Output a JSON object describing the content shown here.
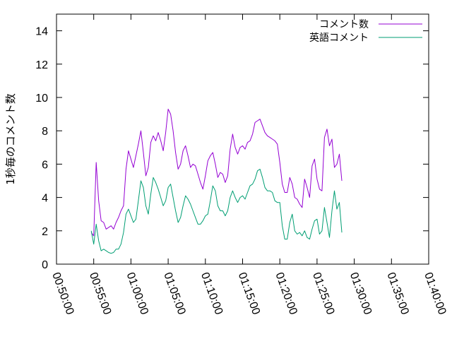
{
  "chart_data": {
    "type": "line",
    "title": "",
    "xlabel": "",
    "ylabel": "1秒毎のコメント数",
    "ylim": [
      0,
      15
    ],
    "yticks": [
      0,
      2,
      4,
      6,
      8,
      10,
      12,
      14
    ],
    "xlim": [
      "00:50:00",
      "01:40:00"
    ],
    "xticks": [
      "00:50:00",
      "00:55:00",
      "01:00:00",
      "01:05:00",
      "01:10:00",
      "01:15:00",
      "01:20:00",
      "01:25:00",
      "01:30:00",
      "01:35:00",
      "01:40:00"
    ],
    "grid": false,
    "legend_position": "top-right",
    "series": [
      {
        "name": "コメント数",
        "color": "#9400d3",
        "points": [
          [
            "00:54:40",
            1.9
          ],
          [
            "00:55:00",
            1.7
          ],
          [
            "00:55:20",
            6.1
          ],
          [
            "00:55:40",
            3.8
          ],
          [
            "00:56:00",
            2.6
          ],
          [
            "00:56:20",
            2.5
          ],
          [
            "00:56:40",
            2.1
          ],
          [
            "00:57:00",
            2.2
          ],
          [
            "00:57:20",
            2.3
          ],
          [
            "00:57:40",
            2.1
          ],
          [
            "00:58:00",
            2.5
          ],
          [
            "00:58:20",
            2.8
          ],
          [
            "00:58:40",
            3.2
          ],
          [
            "00:59:00",
            3.5
          ],
          [
            "00:59:20",
            5.7
          ],
          [
            "00:59:40",
            6.8
          ],
          [
            "01:00:00",
            6.3
          ],
          [
            "01:00:20",
            5.8
          ],
          [
            "01:00:40",
            6.5
          ],
          [
            "01:01:00",
            7.2
          ],
          [
            "01:01:20",
            8.0
          ],
          [
            "01:01:40",
            6.7
          ],
          [
            "01:02:00",
            5.3
          ],
          [
            "01:02:20",
            5.8
          ],
          [
            "01:02:40",
            7.3
          ],
          [
            "01:03:00",
            7.7
          ],
          [
            "01:03:20",
            7.4
          ],
          [
            "01:03:40",
            7.9
          ],
          [
            "01:04:00",
            7.4
          ],
          [
            "01:04:20",
            6.8
          ],
          [
            "01:04:40",
            7.9
          ],
          [
            "01:05:00",
            9.3
          ],
          [
            "01:05:20",
            9.0
          ],
          [
            "01:05:40",
            8.0
          ],
          [
            "01:06:00",
            6.7
          ],
          [
            "01:06:20",
            5.7
          ],
          [
            "01:06:40",
            6.0
          ],
          [
            "01:07:00",
            6.8
          ],
          [
            "01:07:20",
            7.1
          ],
          [
            "01:07:40",
            6.5
          ],
          [
            "01:08:00",
            5.8
          ],
          [
            "01:08:20",
            6.0
          ],
          [
            "01:08:40",
            5.9
          ],
          [
            "01:09:00",
            5.4
          ],
          [
            "01:09:20",
            4.9
          ],
          [
            "01:09:40",
            4.5
          ],
          [
            "01:10:00",
            5.3
          ],
          [
            "01:10:20",
            6.2
          ],
          [
            "01:10:40",
            6.5
          ],
          [
            "01:11:00",
            6.7
          ],
          [
            "01:11:20",
            6.0
          ],
          [
            "01:11:40",
            5.2
          ],
          [
            "01:12:00",
            5.5
          ],
          [
            "01:12:20",
            5.4
          ],
          [
            "01:12:40",
            4.9
          ],
          [
            "01:13:00",
            5.3
          ],
          [
            "01:13:20",
            6.9
          ],
          [
            "01:13:40",
            7.8
          ],
          [
            "01:14:00",
            7.0
          ],
          [
            "01:14:20",
            6.6
          ],
          [
            "01:14:40",
            7.0
          ],
          [
            "01:15:00",
            7.1
          ],
          [
            "01:15:20",
            6.9
          ],
          [
            "01:15:40",
            7.3
          ],
          [
            "01:16:00",
            7.4
          ],
          [
            "01:16:20",
            7.8
          ],
          [
            "01:16:40",
            8.5
          ],
          [
            "01:17:00",
            8.6
          ],
          [
            "01:17:20",
            8.7
          ],
          [
            "01:17:40",
            8.3
          ],
          [
            "01:18:00",
            7.9
          ],
          [
            "01:18:20",
            7.7
          ],
          [
            "01:18:40",
            7.6
          ],
          [
            "01:19:00",
            7.5
          ],
          [
            "01:19:20",
            7.4
          ],
          [
            "01:19:40",
            7.2
          ],
          [
            "01:20:00",
            6.1
          ],
          [
            "01:20:20",
            4.8
          ],
          [
            "01:20:40",
            4.3
          ],
          [
            "01:21:00",
            4.3
          ],
          [
            "01:21:20",
            5.2
          ],
          [
            "01:21:40",
            4.8
          ],
          [
            "01:22:00",
            4.0
          ],
          [
            "01:22:20",
            3.9
          ],
          [
            "01:22:40",
            3.6
          ],
          [
            "01:23:00",
            3.4
          ],
          [
            "01:23:20",
            5.1
          ],
          [
            "01:23:40",
            4.6
          ],
          [
            "01:24:00",
            4.0
          ],
          [
            "01:24:20",
            5.9
          ],
          [
            "01:24:40",
            6.3
          ],
          [
            "01:25:00",
            5.1
          ],
          [
            "01:25:20",
            4.5
          ],
          [
            "01:25:40",
            4.4
          ],
          [
            "01:26:00",
            7.6
          ],
          [
            "01:26:20",
            8.1
          ],
          [
            "01:26:40",
            7.1
          ],
          [
            "01:27:00",
            7.5
          ],
          [
            "01:27:20",
            5.8
          ],
          [
            "01:27:40",
            6.0
          ],
          [
            "01:28:00",
            6.6
          ],
          [
            "01:28:20",
            5.0
          ]
        ]
      },
      {
        "name": "英語コメント",
        "color": "#009e73",
        "points": [
          [
            "00:54:40",
            2.0
          ],
          [
            "00:55:00",
            1.2
          ],
          [
            "00:55:20",
            2.4
          ],
          [
            "00:55:40",
            1.4
          ],
          [
            "00:56:00",
            0.8
          ],
          [
            "00:56:20",
            0.9
          ],
          [
            "00:56:40",
            0.8
          ],
          [
            "00:57:00",
            0.7
          ],
          [
            "00:57:20",
            0.65
          ],
          [
            "00:57:40",
            0.7
          ],
          [
            "00:58:00",
            0.9
          ],
          [
            "00:58:20",
            0.9
          ],
          [
            "00:58:40",
            1.2
          ],
          [
            "00:59:00",
            1.9
          ],
          [
            "00:59:20",
            3.0
          ],
          [
            "00:59:40",
            3.3
          ],
          [
            "01:00:00",
            2.9
          ],
          [
            "01:00:20",
            2.5
          ],
          [
            "01:00:40",
            2.7
          ],
          [
            "01:01:00",
            3.8
          ],
          [
            "01:01:20",
            5.0
          ],
          [
            "01:01:40",
            4.6
          ],
          [
            "01:02:00",
            3.5
          ],
          [
            "01:02:20",
            3.0
          ],
          [
            "01:02:40",
            4.2
          ],
          [
            "01:03:00",
            5.2
          ],
          [
            "01:03:20",
            4.9
          ],
          [
            "01:03:40",
            4.5
          ],
          [
            "01:04:00",
            4.0
          ],
          [
            "01:04:20",
            3.5
          ],
          [
            "01:04:40",
            3.8
          ],
          [
            "01:05:00",
            4.6
          ],
          [
            "01:05:20",
            4.8
          ],
          [
            "01:05:40",
            4.0
          ],
          [
            "01:06:00",
            3.2
          ],
          [
            "01:06:20",
            2.5
          ],
          [
            "01:06:40",
            2.8
          ],
          [
            "01:07:00",
            3.5
          ],
          [
            "01:07:20",
            4.1
          ],
          [
            "01:07:40",
            3.9
          ],
          [
            "01:08:00",
            3.6
          ],
          [
            "01:08:20",
            3.2
          ],
          [
            "01:08:40",
            2.8
          ],
          [
            "01:09:00",
            2.4
          ],
          [
            "01:09:20",
            2.4
          ],
          [
            "01:09:40",
            2.6
          ],
          [
            "01:10:00",
            2.9
          ],
          [
            "01:10:20",
            3.0
          ],
          [
            "01:10:40",
            3.8
          ],
          [
            "01:11:00",
            4.7
          ],
          [
            "01:11:20",
            4.4
          ],
          [
            "01:11:40",
            3.5
          ],
          [
            "01:12:00",
            3.2
          ],
          [
            "01:12:20",
            3.2
          ],
          [
            "01:12:40",
            2.9
          ],
          [
            "01:13:00",
            3.2
          ],
          [
            "01:13:20",
            4.0
          ],
          [
            "01:13:40",
            4.4
          ],
          [
            "01:14:00",
            4.0
          ],
          [
            "01:14:20",
            3.7
          ],
          [
            "01:14:40",
            4.0
          ],
          [
            "01:15:00",
            4.1
          ],
          [
            "01:15:20",
            3.9
          ],
          [
            "01:15:40",
            4.3
          ],
          [
            "01:16:00",
            4.7
          ],
          [
            "01:16:20",
            4.8
          ],
          [
            "01:16:40",
            5.1
          ],
          [
            "01:17:00",
            5.6
          ],
          [
            "01:17:20",
            5.7
          ],
          [
            "01:17:40",
            5.2
          ],
          [
            "01:18:00",
            4.6
          ],
          [
            "01:18:20",
            4.4
          ],
          [
            "01:18:40",
            4.4
          ],
          [
            "01:19:00",
            4.3
          ],
          [
            "01:19:20",
            3.8
          ],
          [
            "01:19:40",
            3.7
          ],
          [
            "01:20:00",
            3.7
          ],
          [
            "01:20:20",
            2.3
          ],
          [
            "01:20:40",
            1.5
          ],
          [
            "01:21:00",
            1.5
          ],
          [
            "01:21:20",
            2.5
          ],
          [
            "01:21:40",
            3.0
          ],
          [
            "01:22:00",
            2.0
          ],
          [
            "01:22:20",
            1.8
          ],
          [
            "01:22:40",
            1.9
          ],
          [
            "01:23:00",
            1.7
          ],
          [
            "01:23:20",
            2.0
          ],
          [
            "01:23:40",
            1.6
          ],
          [
            "01:24:00",
            1.5
          ],
          [
            "01:24:20",
            2.1
          ],
          [
            "01:24:40",
            2.6
          ],
          [
            "01:25:00",
            2.7
          ],
          [
            "01:25:20",
            1.8
          ],
          [
            "01:25:40",
            2.0
          ],
          [
            "01:26:00",
            3.4
          ],
          [
            "01:26:20",
            2.5
          ],
          [
            "01:26:40",
            1.6
          ],
          [
            "01:27:00",
            3.2
          ],
          [
            "01:27:20",
            4.4
          ],
          [
            "01:27:40",
            3.3
          ],
          [
            "01:28:00",
            3.7
          ],
          [
            "01:28:20",
            1.9
          ]
        ]
      }
    ]
  }
}
